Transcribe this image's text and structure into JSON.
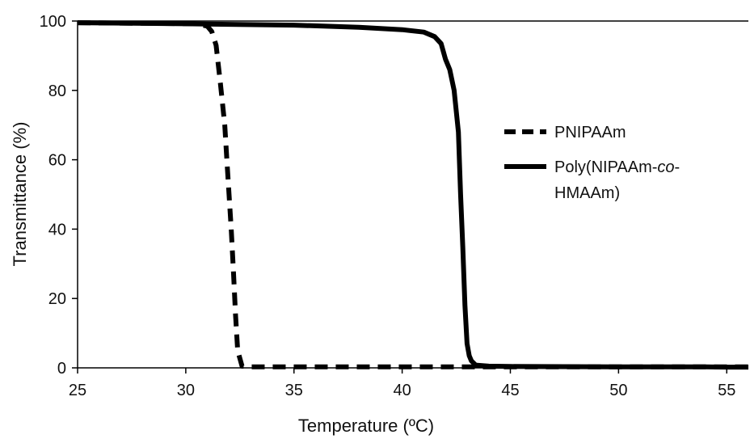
{
  "chart_data": {
    "type": "line",
    "title": "",
    "xlabel": "Temperature (ºC)",
    "ylabel": "Transmittance (%)",
    "xlim": [
      25,
      56
    ],
    "ylim": [
      0,
      100
    ],
    "x_ticks": [
      25,
      30,
      35,
      40,
      45,
      50,
      55
    ],
    "y_ticks": [
      0,
      20,
      40,
      60,
      80,
      100
    ],
    "grid": false,
    "legend_position": "right",
    "legend_lines": [
      [
        {
          "text": "PNIPAAm",
          "italic": false
        }
      ],
      [
        {
          "text": "Poly(NIPAAm-",
          "italic": false
        },
        {
          "text": "co",
          "italic": true
        },
        {
          "text": "-",
          "italic": false
        }
      ],
      [
        {
          "text": "HMAAm)",
          "italic": false
        }
      ]
    ],
    "series": [
      {
        "name": "PNIPAAm",
        "style": "dashed",
        "color": "#000000",
        "x": [
          25,
          27,
          29,
          30.5,
          31.0,
          31.2,
          31.4,
          31.6,
          31.8,
          31.9,
          32.0,
          32.1,
          32.2,
          32.3,
          32.4,
          32.6,
          33,
          36,
          40,
          45,
          50,
          55,
          56
        ],
        "y": [
          99.5,
          99.4,
          99.3,
          99.2,
          98.5,
          97,
          93,
          82,
          70,
          60,
          50,
          40,
          28,
          15,
          5,
          0.5,
          0.3,
          0.3,
          0.3,
          0.3,
          0.3,
          0.3,
          0.3
        ]
      },
      {
        "name": "Poly(NIPAAm-co-HMAAm)",
        "style": "solid",
        "color": "#000000",
        "x": [
          25,
          30,
          35,
          38,
          40,
          41,
          41.5,
          41.8,
          42.0,
          42.2,
          42.4,
          42.6,
          42.7,
          42.8,
          42.9,
          43.0,
          43.1,
          43.2,
          43.4,
          44,
          45,
          50,
          54,
          55,
          56
        ],
        "y": [
          99.5,
          99.2,
          98.8,
          98.2,
          97.5,
          96.8,
          95.5,
          93.5,
          89,
          86,
          80,
          68,
          50,
          35,
          18,
          7,
          3.5,
          2,
          0.8,
          0.5,
          0.4,
          0.3,
          0.3,
          0.2,
          0.2
        ]
      }
    ]
  }
}
